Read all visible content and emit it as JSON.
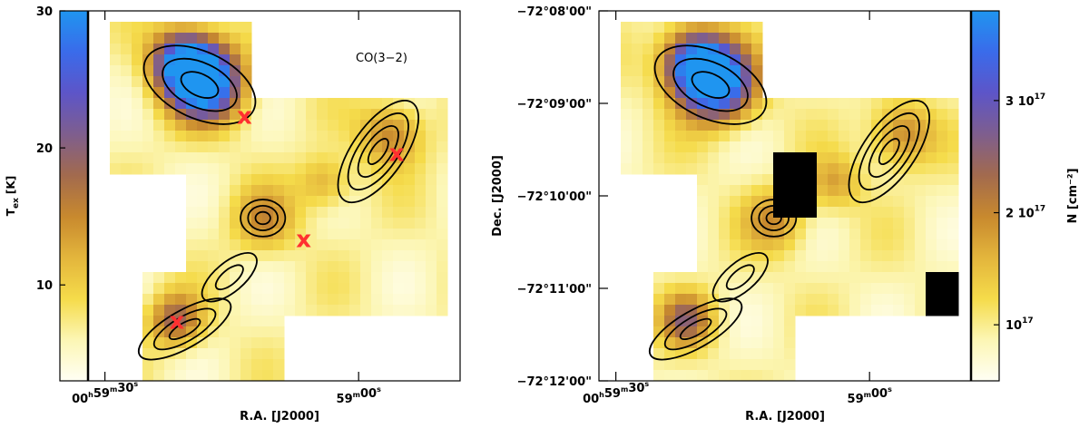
{
  "chart_data": [
    {
      "type": "heatmap",
      "panel": "left",
      "colorbar": {
        "position": "left",
        "label_main": "T",
        "label_sub": "ex",
        "label_unit": "[K]",
        "range": [
          3,
          30
        ],
        "ticks": [
          {
            "value": 10,
            "label": "10"
          },
          {
            "value": 20,
            "label": "20"
          },
          {
            "value": 30,
            "label": "30"
          }
        ],
        "colors": [
          "#fffff4",
          "#fcf6b4",
          "#f5db4a",
          "#e3b53c",
          "#c8892e",
          "#a26a4e",
          "#7e5e8e",
          "#5d55c8",
          "#3a6bea",
          "#1f95f0"
        ]
      },
      "xaxis": {
        "label": "R.A. [J2000]",
        "range": [
          32,
          -12
        ],
        "ticks": [
          {
            "value": 30,
            "label_h": "00",
            "sup_h": "h",
            "label_m": "59",
            "sup_m": "m",
            "label_s": "30",
            "sup_s": "s"
          },
          {
            "value": 0,
            "label_m": "59",
            "sup_m": "m",
            "label_s": "00",
            "sup_s": "s"
          }
        ]
      },
      "annotation": "CO(3−2)",
      "markers": [
        {
          "ra": 13.5,
          "dec": -548,
          "label": "x"
        },
        {
          "ra": 6.5,
          "dec": -628,
          "label": "x"
        },
        {
          "ra": -4.5,
          "dec": -572,
          "label": "x"
        },
        {
          "ra": 21.5,
          "dec": -681,
          "label": "x"
        }
      ],
      "marker_color": "#ff3030"
    },
    {
      "type": "heatmap",
      "panel": "right",
      "colorbar": {
        "position": "right",
        "label": "N [cm⁻²]",
        "range": [
          5e+16,
          3.8e+17
        ],
        "ticks": [
          {
            "value": 1e+17,
            "label_base": "10",
            "label_exp": "17"
          },
          {
            "value": 2e+17,
            "label_base": "2 10",
            "label_exp": "17"
          },
          {
            "value": 3e+17,
            "label_base": "3 10",
            "label_exp": "17"
          }
        ],
        "colors": [
          "#fffff4",
          "#fcf6b4",
          "#f5db4a",
          "#e3b53c",
          "#c8892e",
          "#a26a4e",
          "#7e5e8e",
          "#5d55c8",
          "#3a6bea",
          "#1f95f0"
        ]
      },
      "xaxis": {
        "label": "R.A. [J2000]",
        "range": [
          32,
          -12
        ],
        "ticks": [
          {
            "value": 30,
            "label_h": "00",
            "sup_h": "h",
            "label_m": "59",
            "sup_m": "m",
            "label_s": "30",
            "sup_s": "s"
          },
          {
            "value": 0,
            "label_m": "59",
            "sup_m": "m",
            "label_s": "00",
            "sup_s": "s"
          }
        ]
      },
      "yaxis": {
        "label": "Dec. [J2000]",
        "range": [
          -720,
          -480
        ],
        "ticks": [
          {
            "value": -480,
            "label": "−72°08'00\""
          },
          {
            "value": -540,
            "label": "−72°09'00\""
          },
          {
            "value": -600,
            "label": "−72°10'00\""
          },
          {
            "value": -660,
            "label": "−72°11'00\""
          },
          {
            "value": -720,
            "label": "−72°12'00\""
          }
        ]
      }
    }
  ]
}
